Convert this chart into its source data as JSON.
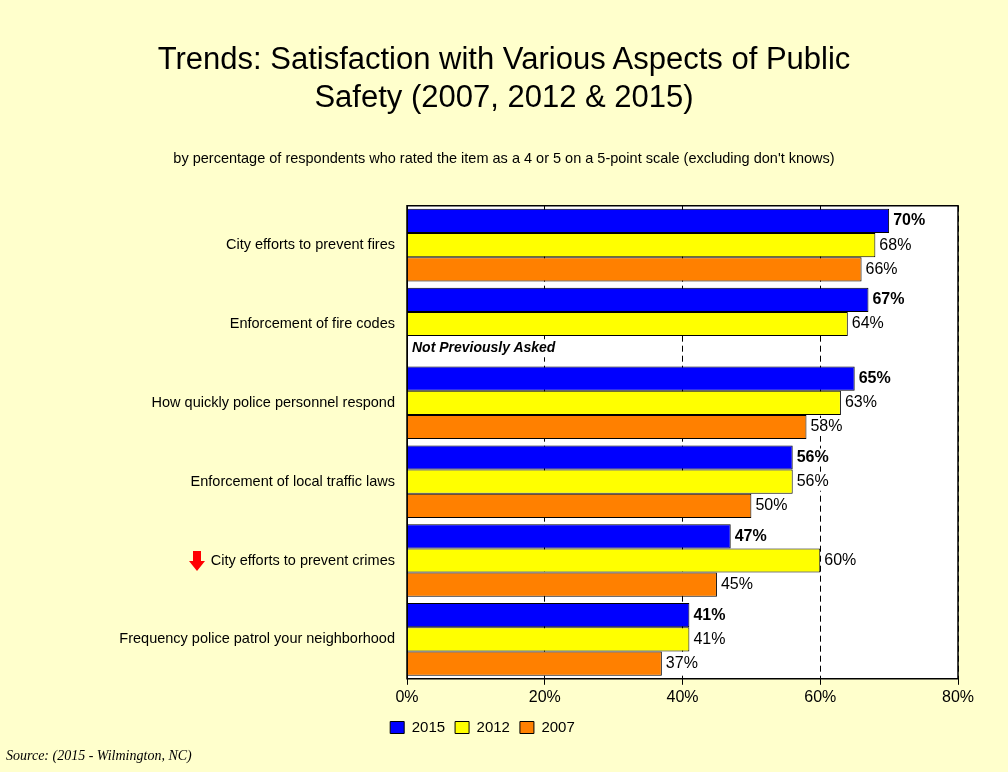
{
  "chart_data": {
    "type": "bar",
    "orientation": "horizontal",
    "title": "Trends: Satisfaction with Various Aspects of Public Safety (2007, 2012 & 2015)",
    "subtitle": "by percentage of respondents who rated the item as a 4 or 5 on a 5-point scale (excluding don't knows)",
    "categories": [
      "City efforts to prevent fires",
      "Enforcement of fire codes",
      "How quickly police personnel respond",
      "Enforcement of local traffic laws",
      "City efforts to prevent crimes",
      "Frequency police patrol your neighborhood"
    ],
    "series": [
      {
        "name": "2015",
        "color": "#0000ff",
        "values": [
          70,
          67,
          65,
          56,
          47,
          41
        ],
        "value_labels": [
          "70%",
          "67%",
          "65%",
          "56%",
          "47%",
          "41%"
        ]
      },
      {
        "name": "2012",
        "color": "#ffff00",
        "values": [
          68,
          64,
          63,
          56,
          60,
          41
        ],
        "value_labels": [
          "68%",
          "64%",
          "63%",
          "56%",
          "60%",
          "41%"
        ]
      },
      {
        "name": "2007",
        "color": "#ff8000",
        "values": [
          66,
          null,
          58,
          50,
          45,
          37
        ],
        "value_labels": [
          "66%",
          null,
          "58%",
          "50%",
          "45%",
          "37%"
        ]
      }
    ],
    "xlim": [
      0,
      80
    ],
    "xticks": [
      {
        "value": 0,
        "label": "0%"
      },
      {
        "value": 20,
        "label": "20%"
      },
      {
        "value": 40,
        "label": "40%"
      },
      {
        "value": 60,
        "label": "60%"
      },
      {
        "value": 80,
        "label": "80%"
      }
    ],
    "grid": "x",
    "legend": "bottom",
    "annotations": [
      "Not Previously Asked",
      "Source:  (2015 - Wilmington, NC)"
    ]
  }
}
